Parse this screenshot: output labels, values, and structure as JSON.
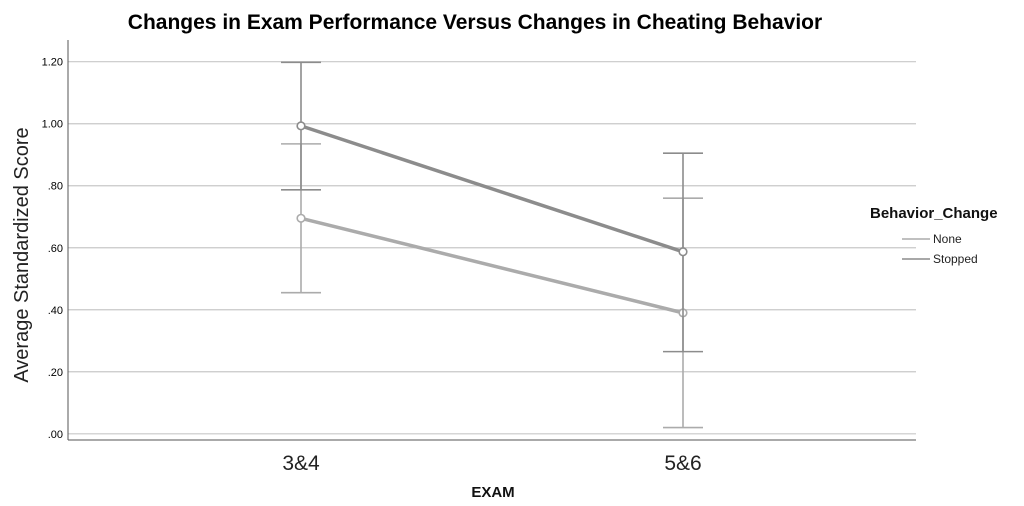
{
  "chart_data": {
    "type": "line",
    "title": "Changes in Exam Performance Versus Changes in Cheating Behavior",
    "xlabel": "EXAM",
    "ylabel": "Average Standardized Score",
    "categories": [
      "3&4",
      "5&6"
    ],
    "yticks": [
      ".00",
      ".20",
      ".40",
      ".60",
      ".80",
      "1.00",
      "1.20"
    ],
    "ylim": [
      -0.02,
      1.27
    ],
    "grid": true,
    "legend": {
      "title": "Behavior_Change",
      "placement": "right"
    },
    "series": [
      {
        "name": "None",
        "values": [
          0.695,
          0.39
        ],
        "error_low": [
          0.455,
          0.02
        ],
        "error_high": [
          0.935,
          0.76
        ],
        "color": "#ababab"
      },
      {
        "name": "Stopped",
        "values": [
          0.993,
          0.587
        ],
        "error_low": [
          0.787,
          0.265
        ],
        "error_high": [
          1.198,
          0.905
        ],
        "color": "#8c8c8c"
      }
    ]
  }
}
